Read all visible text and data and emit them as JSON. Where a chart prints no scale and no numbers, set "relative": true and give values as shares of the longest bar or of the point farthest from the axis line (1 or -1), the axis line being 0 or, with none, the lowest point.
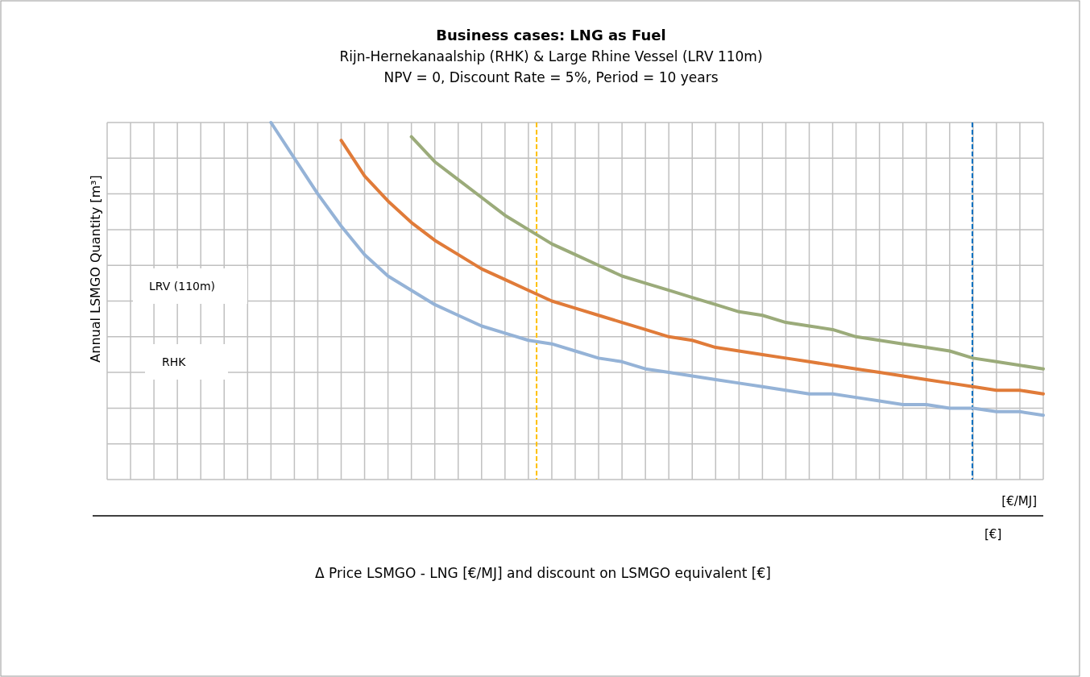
{
  "chart_data": {
    "type": "line",
    "title": "Business cases: LNG as Fuel",
    "subtitle": "Rijn-Hernekanaalship (RHK) & Large Rhine Vessel (LRV 110m)\nNPV = 0, Discount Rate = 5%, Period = 10 years",
    "ylabel": "Annual LSMGO Quantity [m³]",
    "annotations": [
      "LRV (110m)",
      "RHK",
      "[€/MJ]",
      "[€]",
      "Δ Price LSMGO - LNG [€/MJ] and discount on LSMGO equivalent [€]"
    ],
    "relative": true,
    "grid": true,
    "marker": "none",
    "line_style": "solid",
    "categories": [
      null,
      null,
      null,
      null,
      null,
      null,
      null,
      null,
      null,
      null,
      null,
      null,
      null,
      null,
      null,
      null,
      null,
      null,
      null,
      null,
      null,
      null,
      null,
      null,
      null,
      null,
      null,
      null,
      null,
      null,
      null,
      null,
      null,
      null,
      null,
      null,
      null,
      null,
      null,
      null,
      null
    ],
    "series": [
      {
        "color": "#95b3d7",
        "values": [
          null,
          null,
          null,
          null,
          null,
          null,
          null,
          1,
          0.9,
          0.8,
          0.71,
          0.63,
          0.57,
          0.53,
          0.49,
          0.46,
          0.43,
          0.41,
          0.39,
          0.38,
          0.36,
          0.34,
          0.33,
          0.31,
          0.3,
          0.29,
          0.28,
          0.27,
          0.26,
          0.25,
          0.24,
          0.24,
          0.23,
          0.22,
          0.21,
          0.21,
          0.2,
          0.2,
          0.19,
          0.19,
          0.18
        ]
      },
      {
        "color": "#e07b39",
        "values": [
          null,
          null,
          null,
          null,
          null,
          null,
          null,
          null,
          null,
          null,
          0.95,
          0.85,
          0.78,
          0.72,
          0.67,
          0.63,
          0.59,
          0.56,
          0.53,
          0.5,
          0.48,
          0.46,
          0.44,
          0.42,
          0.4,
          0.39,
          0.37,
          0.36,
          0.35,
          0.34,
          0.33,
          0.32,
          0.31,
          0.3,
          0.29,
          0.28,
          0.27,
          0.26,
          0.25,
          0.25,
          0.24
        ]
      },
      {
        "color": "#9bab7a",
        "values": [
          null,
          null,
          null,
          null,
          null,
          null,
          null,
          null,
          null,
          null,
          null,
          null,
          null,
          0.96,
          0.89,
          0.84,
          0.79,
          0.74,
          0.7,
          0.66,
          0.63,
          0.6,
          0.57,
          0.55,
          0.53,
          0.51,
          0.49,
          0.47,
          0.46,
          0.44,
          0.43,
          0.42,
          0.4,
          0.39,
          0.38,
          0.37,
          0.36,
          0.34,
          0.33,
          0.32,
          0.31
        ]
      }
    ]
  }
}
